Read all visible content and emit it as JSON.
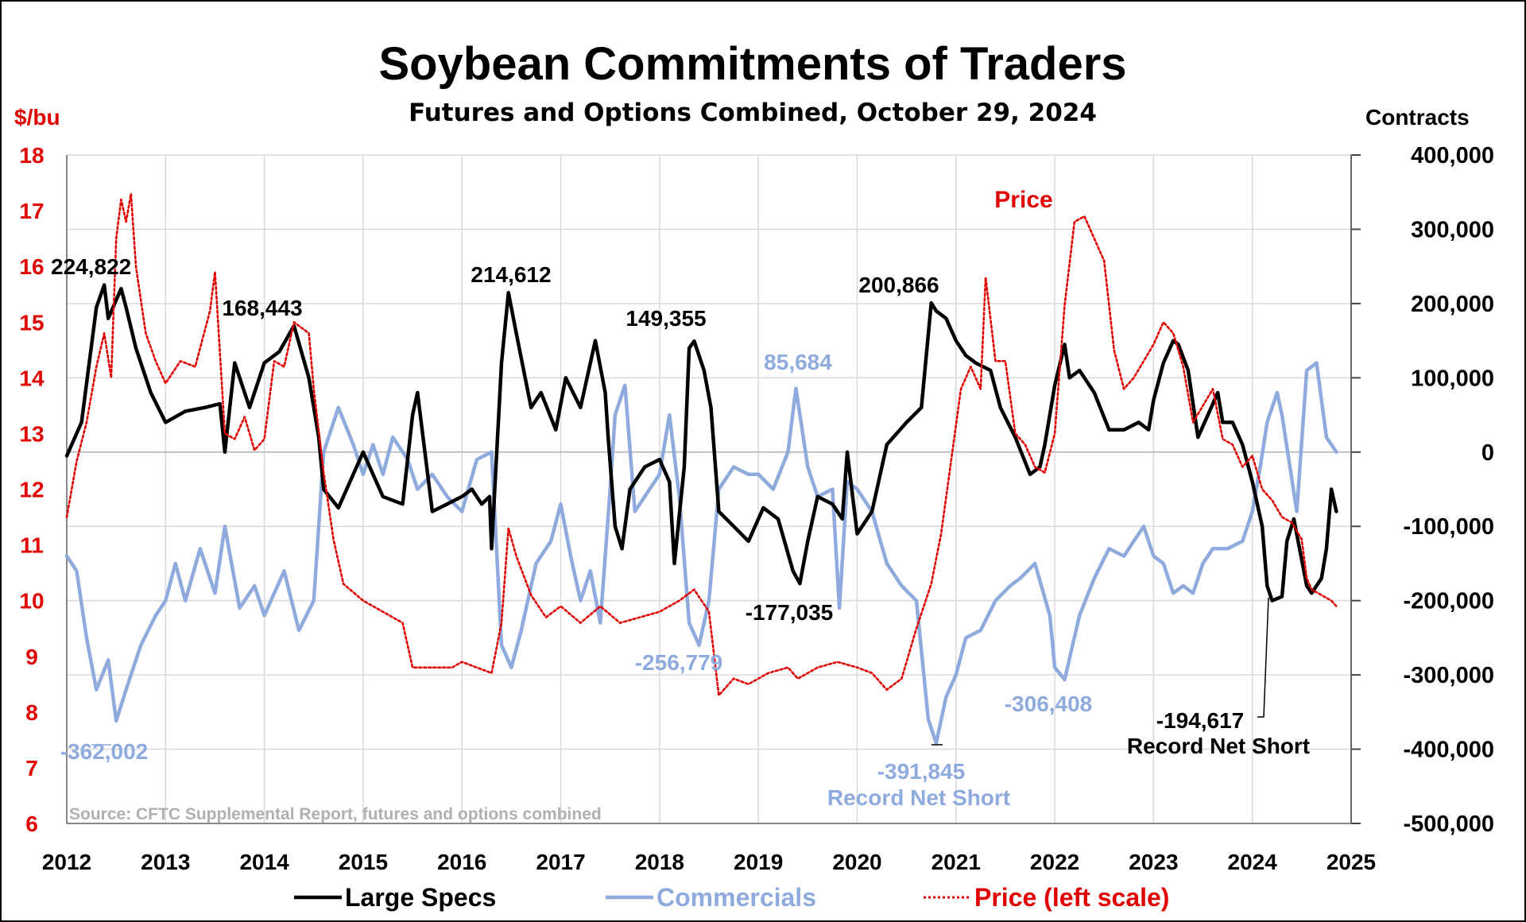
{
  "chart_data": {
    "type": "line",
    "title": "Soybean Commitments of Traders",
    "subtitle": "Futures and Options Combined, October 29, 2024",
    "y_left_label": "$/bu",
    "y_right_label": "Contracts",
    "ylim_left": [
      6,
      18
    ],
    "ylim_right": [
      -500000,
      400000
    ],
    "xlim": [
      2012,
      2025
    ],
    "x_ticks": [
      "2012",
      "2013",
      "2014",
      "2015",
      "2016",
      "2017",
      "2018",
      "2019",
      "2020",
      "2021",
      "2022",
      "2023",
      "2024",
      "2025"
    ],
    "y_left_ticks": [
      "6",
      "7",
      "8",
      "9",
      "10",
      "11",
      "12",
      "13",
      "14",
      "15",
      "16",
      "17",
      "18"
    ],
    "y_right_ticks": [
      "-500,000",
      "-400,000",
      "-300,000",
      "-200,000",
      "-100,000",
      "0",
      "100,000",
      "200,000",
      "300,000",
      "400,000"
    ],
    "grid": true,
    "legend_position": "bottom",
    "colors": {
      "large_specs": "#000000",
      "commercials": "#8faadc",
      "price": "#e00000",
      "axis_left": "#e00000"
    },
    "series": [
      {
        "name": "Large Specs",
        "axis": "right",
        "x": [
          2012.0,
          2012.15,
          2012.3,
          2012.38,
          2012.42,
          2012.55,
          2012.6,
          2012.7,
          2012.85,
          2013.0,
          2013.2,
          2013.4,
          2013.55,
          2013.6,
          2013.7,
          2013.85,
          2014.0,
          2014.15,
          2014.3,
          2014.45,
          2014.55,
          2014.6,
          2014.75,
          2015.0,
          2015.2,
          2015.4,
          2015.5,
          2015.55,
          2015.7,
          2015.85,
          2016.0,
          2016.1,
          2016.2,
          2016.28,
          2016.3,
          2016.4,
          2016.47,
          2016.55,
          2016.7,
          2016.8,
          2016.95,
          2017.05,
          2017.2,
          2017.35,
          2017.45,
          2017.48,
          2017.55,
          2017.62,
          2017.7,
          2017.85,
          2018.0,
          2018.1,
          2018.15,
          2018.25,
          2018.3,
          2018.35,
          2018.45,
          2018.52,
          2018.6,
          2018.75,
          2018.9,
          2019.05,
          2019.2,
          2019.35,
          2019.42,
          2019.5,
          2019.6,
          2019.75,
          2019.85,
          2019.9,
          2020.0,
          2020.15,
          2020.3,
          2020.5,
          2020.65,
          2020.75,
          2020.8,
          2020.9,
          2021.0,
          2021.1,
          2021.2,
          2021.35,
          2021.45,
          2021.6,
          2021.75,
          2021.85,
          2021.9,
          2022.0,
          2022.1,
          2022.15,
          2022.25,
          2022.4,
          2022.55,
          2022.7,
          2022.85,
          2022.95,
          2023.0,
          2023.1,
          2023.2,
          2023.25,
          2023.35,
          2023.45,
          2023.55,
          2023.65,
          2023.7,
          2023.8,
          2023.9,
          2024.0,
          2024.1,
          2024.15,
          2024.2,
          2024.3,
          2024.35,
          2024.42,
          2024.55,
          2024.6,
          2024.7,
          2024.75,
          2024.8,
          2024.85
        ],
        "values": [
          -5000,
          40000,
          195000,
          225000,
          180000,
          220000,
          195000,
          140000,
          80000,
          40000,
          55000,
          60000,
          65000,
          0,
          120000,
          60000,
          120000,
          135000,
          170000,
          100000,
          20000,
          -50000,
          -75000,
          0,
          -60000,
          -70000,
          50000,
          80000,
          -80000,
          -70000,
          -60000,
          -50000,
          -70000,
          -60000,
          -130000,
          120000,
          214612,
          160000,
          60000,
          80000,
          30000,
          100000,
          60000,
          150000,
          80000,
          20000,
          -100000,
          -130000,
          -50000,
          -20000,
          -10000,
          -40000,
          -150000,
          -20000,
          140000,
          149355,
          110000,
          60000,
          -80000,
          -100000,
          -120000,
          -75000,
          -90000,
          -160000,
          -177035,
          -120000,
          -60000,
          -70000,
          -90000,
          0,
          -110000,
          -80000,
          10000,
          40000,
          60000,
          200866,
          190000,
          180000,
          150000,
          130000,
          120000,
          110000,
          60000,
          20000,
          -30000,
          -20000,
          10000,
          90000,
          145000,
          100000,
          110000,
          80000,
          30000,
          30000,
          40000,
          30000,
          70000,
          120000,
          150000,
          145000,
          110000,
          20000,
          50000,
          80000,
          40000,
          40000,
          10000,
          -40000,
          -100000,
          -180000,
          -200000,
          -194617,
          -120000,
          -90000,
          -180000,
          -190000,
          -170000,
          -130000,
          -50000,
          -80000
        ]
      },
      {
        "name": "Commercials",
        "axis": "right",
        "x": [
          2012.0,
          2012.1,
          2012.2,
          2012.3,
          2012.42,
          2012.5,
          2012.6,
          2012.75,
          2012.9,
          2013.0,
          2013.1,
          2013.2,
          2013.35,
          2013.5,
          2013.6,
          2013.75,
          2013.9,
          2014.0,
          2014.2,
          2014.35,
          2014.5,
          2014.6,
          2014.75,
          2014.9,
          2015.0,
          2015.1,
          2015.2,
          2015.3,
          2015.45,
          2015.55,
          2015.7,
          2015.85,
          2016.0,
          2016.15,
          2016.3,
          2016.4,
          2016.5,
          2016.6,
          2016.75,
          2016.9,
          2017.0,
          2017.1,
          2017.2,
          2017.3,
          2017.4,
          2017.5,
          2017.55,
          2017.65,
          2017.75,
          2017.85,
          2018.0,
          2018.1,
          2018.2,
          2018.3,
          2018.4,
          2018.5,
          2018.6,
          2018.75,
          2018.9,
          2019.0,
          2019.15,
          2019.3,
          2019.38,
          2019.5,
          2019.6,
          2019.75,
          2019.82,
          2019.9,
          2020.0,
          2020.15,
          2020.3,
          2020.45,
          2020.6,
          2020.72,
          2020.8,
          2020.9,
          2021.0,
          2021.1,
          2021.25,
          2021.4,
          2021.55,
          2021.65,
          2021.8,
          2021.95,
          2022.0,
          2022.1,
          2022.25,
          2022.4,
          2022.55,
          2022.7,
          2022.8,
          2022.9,
          2023.0,
          2023.1,
          2023.2,
          2023.3,
          2023.4,
          2023.5,
          2023.6,
          2023.75,
          2023.9,
          2024.0,
          2024.08,
          2024.15,
          2024.25,
          2024.3,
          2024.45,
          2024.55,
          2024.65,
          2024.75,
          2024.85
        ],
        "values": [
          -140000,
          -160000,
          -250000,
          -320000,
          -280000,
          -362002,
          -320000,
          -260000,
          -220000,
          -200000,
          -150000,
          -200000,
          -130000,
          -190000,
          -100000,
          -210000,
          -180000,
          -220000,
          -160000,
          -240000,
          -200000,
          0,
          60000,
          10000,
          -30000,
          10000,
          -30000,
          20000,
          -10000,
          -50000,
          -30000,
          -60000,
          -80000,
          -10000,
          0,
          -260000,
          -290000,
          -240000,
          -150000,
          -120000,
          -70000,
          -140000,
          -200000,
          -160000,
          -230000,
          -50000,
          50000,
          90000,
          -80000,
          -60000,
          -30000,
          50000,
          -60000,
          -230000,
          -260000,
          -200000,
          -50000,
          -20000,
          -30000,
          -30000,
          -50000,
          0,
          85684,
          -20000,
          -60000,
          -50000,
          -210000,
          -40000,
          -50000,
          -80000,
          -150000,
          -180000,
          -200000,
          -360000,
          -391845,
          -330000,
          -300000,
          -250000,
          -240000,
          -200000,
          -180000,
          -170000,
          -150000,
          -220000,
          -290000,
          -306408,
          -220000,
          -170000,
          -130000,
          -140000,
          -120000,
          -100000,
          -140000,
          -150000,
          -190000,
          -180000,
          -190000,
          -150000,
          -130000,
          -130000,
          -120000,
          -80000,
          -20000,
          40000,
          80000,
          50000,
          -80000,
          110000,
          120000,
          20000,
          0
        ]
      },
      {
        "name": "Price (left scale)",
        "axis": "left",
        "x": [
          2012.0,
          2012.1,
          2012.2,
          2012.3,
          2012.38,
          2012.45,
          2012.5,
          2012.55,
          2012.6,
          2012.65,
          2012.7,
          2012.8,
          2012.9,
          2013.0,
          2013.15,
          2013.3,
          2013.45,
          2013.5,
          2013.6,
          2013.7,
          2013.8,
          2013.9,
          2014.0,
          2014.1,
          2014.2,
          2014.3,
          2014.45,
          2014.5,
          2014.6,
          2014.7,
          2014.8,
          2015.0,
          2015.2,
          2015.4,
          2015.5,
          2015.6,
          2015.75,
          2015.9,
          2016.0,
          2016.15,
          2016.3,
          2016.4,
          2016.47,
          2016.55,
          2016.7,
          2016.85,
          2017.0,
          2017.2,
          2017.4,
          2017.6,
          2017.8,
          2018.0,
          2018.2,
          2018.35,
          2018.5,
          2018.6,
          2018.75,
          2018.9,
          2019.1,
          2019.3,
          2019.4,
          2019.6,
          2019.8,
          2020.0,
          2020.15,
          2020.3,
          2020.45,
          2020.6,
          2020.75,
          2020.85,
          2020.95,
          2021.05,
          2021.15,
          2021.25,
          2021.3,
          2021.4,
          2021.5,
          2021.6,
          2021.7,
          2021.8,
          2021.9,
          2022.0,
          2022.1,
          2022.2,
          2022.3,
          2022.4,
          2022.5,
          2022.6,
          2022.7,
          2022.8,
          2022.9,
          2023.0,
          2023.1,
          2023.2,
          2023.3,
          2023.4,
          2023.5,
          2023.6,
          2023.7,
          2023.8,
          2023.9,
          2024.0,
          2024.1,
          2024.2,
          2024.3,
          2024.4,
          2024.5,
          2024.55,
          2024.6,
          2024.7,
          2024.8,
          2024.85
        ],
        "values": [
          11.5,
          12.5,
          13.2,
          14.2,
          14.8,
          14.0,
          16.5,
          17.2,
          16.8,
          17.3,
          16.0,
          14.8,
          14.3,
          13.9,
          14.3,
          14.2,
          15.2,
          15.9,
          13.0,
          12.9,
          13.3,
          12.7,
          12.9,
          14.3,
          14.2,
          15.0,
          14.8,
          13.8,
          12.3,
          11.1,
          10.3,
          10.0,
          9.8,
          9.6,
          8.8,
          8.8,
          8.8,
          8.8,
          8.9,
          8.8,
          8.7,
          9.6,
          11.3,
          10.8,
          10.1,
          9.7,
          9.9,
          9.6,
          9.9,
          9.6,
          9.7,
          9.8,
          10.0,
          10.2,
          9.8,
          8.3,
          8.6,
          8.5,
          8.7,
          8.8,
          8.6,
          8.8,
          8.9,
          8.8,
          8.7,
          8.4,
          8.6,
          9.5,
          10.3,
          11.2,
          12.5,
          13.8,
          14.2,
          13.8,
          15.8,
          14.3,
          14.3,
          13.0,
          12.8,
          12.4,
          12.3,
          13.0,
          15.3,
          16.8,
          16.9,
          16.5,
          16.1,
          14.5,
          13.8,
          14.0,
          14.3,
          14.6,
          15.0,
          14.8,
          14.2,
          13.2,
          13.5,
          13.8,
          12.9,
          12.8,
          12.4,
          12.6,
          12.0,
          11.8,
          11.5,
          11.4,
          11.1,
          10.4,
          10.2,
          10.1,
          10.0,
          9.9
        ]
      }
    ],
    "annotations": [
      {
        "text": "224,822",
        "series": "Large Specs"
      },
      {
        "text": "168,443",
        "series": "Large Specs"
      },
      {
        "text": "214,612",
        "series": "Large Specs"
      },
      {
        "text": "149,355",
        "series": "Large Specs"
      },
      {
        "text": "200,866",
        "series": "Large Specs"
      },
      {
        "text": "-177,035",
        "series": "Large Specs"
      },
      {
        "text": "-194,617",
        "series": "Large Specs"
      },
      {
        "text": "Record Net Short",
        "series": "Large Specs"
      },
      {
        "text": "85,684",
        "series": "Commercials"
      },
      {
        "text": "-256,779",
        "series": "Commercials"
      },
      {
        "text": "-306,408",
        "series": "Commercials"
      },
      {
        "text": "-362,002",
        "series": "Commercials"
      },
      {
        "text": "-391,845",
        "series": "Commercials"
      },
      {
        "text": "Record Net Short",
        "series": "Commercials"
      },
      {
        "text": "Price",
        "series": "Price (left scale)"
      }
    ],
    "source": "Source: CFTC Supplemental Report, futures and options combined"
  }
}
